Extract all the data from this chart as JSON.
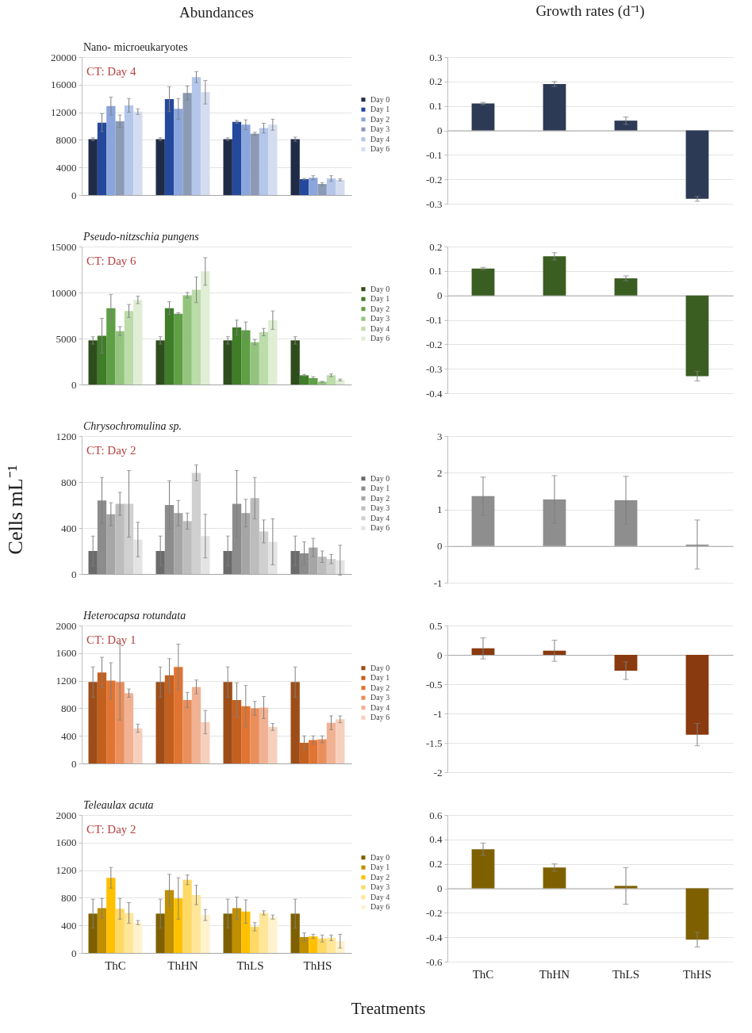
{
  "chart_data": [
    {
      "type": "bar",
      "title": "Abundances",
      "subtitle": "Nano- microeukaryotes",
      "annotations": [
        "CT: Day 4"
      ],
      "categories": [
        null,
        null,
        null,
        null
      ],
      "series": [
        {
          "name": "Day 0",
          "color": "#1f2b47",
          "values": [
            8100,
            8100,
            8100,
            8100
          ],
          "errors": [
            200,
            200,
            200,
            300
          ]
        },
        {
          "name": "Day 1",
          "color": "#24489c",
          "values": [
            10500,
            13900,
            10600,
            2300
          ],
          "errors": [
            1300,
            1800,
            200,
            100
          ]
        },
        {
          "name": "Day 2",
          "color": "#8aa6dc",
          "values": [
            12900,
            12500,
            10200,
            2500
          ],
          "errors": [
            1300,
            1500,
            700,
            300
          ]
        },
        {
          "name": "Day 3",
          "color": "#8b9ab5",
          "values": [
            10700,
            14800,
            8900,
            1600
          ],
          "errors": [
            900,
            1000,
            200,
            200
          ]
        },
        {
          "name": "Day 4",
          "color": "#b4c6ea",
          "values": [
            13000,
            17100,
            9700,
            2400
          ],
          "errors": [
            1000,
            800,
            700,
            400
          ]
        },
        {
          "name": "Day 6",
          "color": "#d4ddf0",
          "values": [
            12100,
            14900,
            10200,
            2200
          ],
          "errors": [
            400,
            1700,
            800,
            150
          ]
        }
      ],
      "ylim": [
        0,
        20000
      ],
      "yticks": [
        0,
        4000,
        8000,
        12000,
        16000,
        20000
      ],
      "grid": "y",
      "legend": "right"
    },
    {
      "type": "bar",
      "title": "Growth rates (d⁻¹)",
      "categories": [
        null,
        null,
        null,
        null
      ],
      "values": [
        0.11,
        0.19,
        0.04,
        -0.28
      ],
      "errors": [
        0.005,
        0.01,
        0.015,
        0.01
      ],
      "color": "#2c3a56",
      "ylim": [
        -0.3,
        0.3
      ],
      "yticks": [
        -0.3,
        -0.2,
        -0.1,
        0,
        0.1,
        0.2,
        0.3
      ],
      "grid": "y"
    },
    {
      "type": "bar",
      "subtitle": "Pseudo-nitzschia pungens",
      "annotations": [
        "CT: Day 6"
      ],
      "categories": [
        null,
        null,
        null,
        null
      ],
      "series": [
        {
          "name": "Day 0",
          "color": "#2e4d1c",
          "values": [
            4800,
            4800,
            4800,
            4800
          ],
          "errors": [
            400,
            400,
            400,
            400
          ]
        },
        {
          "name": "Day 1",
          "color": "#3f7d29",
          "values": [
            5300,
            8300,
            6200,
            1000
          ],
          "errors": [
            1900,
            700,
            800,
            100
          ]
        },
        {
          "name": "Day 2",
          "color": "#5fa046",
          "values": [
            8300,
            7700,
            5900,
            700
          ],
          "errors": [
            1500,
            100,
            900,
            150
          ]
        },
        {
          "name": "Day 3",
          "color": "#93c47d",
          "values": [
            5800,
            9700,
            4600,
            300
          ],
          "errors": [
            500,
            300,
            300,
            50
          ]
        },
        {
          "name": "Day 4",
          "color": "#bcdcaa",
          "values": [
            8000,
            10300,
            5700,
            1000
          ],
          "errors": [
            700,
            1400,
            400,
            150
          ]
        },
        {
          "name": "Day 6",
          "color": "#dfeed4",
          "values": [
            9200,
            12300,
            7000,
            500
          ],
          "errors": [
            400,
            1500,
            1000,
            100
          ]
        }
      ],
      "ylim": [
        0,
        15000
      ],
      "yticks": [
        0,
        5000,
        10000,
        15000
      ],
      "grid": "y",
      "legend": "right"
    },
    {
      "type": "bar",
      "categories": [
        null,
        null,
        null,
        null
      ],
      "values": [
        0.11,
        0.16,
        0.07,
        -0.33
      ],
      "errors": [
        0.005,
        0.015,
        0.01,
        0.02
      ],
      "color": "#3a5e22",
      "ylim": [
        -0.4,
        0.2
      ],
      "yticks": [
        -0.4,
        -0.3,
        -0.2,
        -0.1,
        0,
        0.1,
        0.2
      ],
      "grid": "y"
    },
    {
      "type": "bar",
      "subtitle": "Chrysochromulina sp.",
      "annotations": [
        "CT: Day 2"
      ],
      "ylabel": "Cells mL⁻¹",
      "categories": [
        null,
        null,
        null,
        null
      ],
      "series": [
        {
          "name": "Day 0",
          "color": "#6b6b6b",
          "values": [
            200,
            200,
            200,
            200
          ],
          "errors": [
            130,
            130,
            130,
            130
          ]
        },
        {
          "name": "Day 1",
          "color": "#8c8c8c",
          "values": [
            640,
            600,
            610,
            180
          ],
          "errors": [
            200,
            210,
            290,
            100
          ]
        },
        {
          "name": "Day 2",
          "color": "#a6a6a6",
          "values": [
            520,
            530,
            530,
            230
          ],
          "errors": [
            100,
            110,
            120,
            80
          ]
        },
        {
          "name": "Day 3",
          "color": "#bdbdbd",
          "values": [
            610,
            460,
            660,
            150
          ],
          "errors": [
            100,
            70,
            180,
            50
          ]
        },
        {
          "name": "Day 4",
          "color": "#d0d0d0",
          "values": [
            610,
            880,
            370,
            130
          ],
          "errors": [
            290,
            70,
            100,
            40
          ]
        },
        {
          "name": "Day 6",
          "color": "#e4e4e4",
          "values": [
            300,
            330,
            280,
            120
          ],
          "errors": [
            150,
            190,
            200,
            130
          ]
        }
      ],
      "ylim": [
        0,
        1200
      ],
      "yticks": [
        0,
        400,
        800,
        1200
      ],
      "grid": "y",
      "legend": "right"
    },
    {
      "type": "bar",
      "categories": [
        null,
        null,
        null,
        null
      ],
      "values": [
        1.36,
        1.27,
        1.25,
        0.04
      ],
      "errors": [
        0.52,
        0.65,
        0.65,
        0.67
      ],
      "color": "#8e8e8e",
      "ylim": [
        -1,
        3
      ],
      "yticks": [
        -1,
        0,
        1,
        2,
        3
      ],
      "grid": "y"
    },
    {
      "type": "bar",
      "subtitle": "Heterocapsa rotundata",
      "annotations": [
        "CT: Day 1"
      ],
      "categories": [
        null,
        null,
        null,
        null
      ],
      "series": [
        {
          "name": "Day 0",
          "color": "#9e4d18",
          "values": [
            1180,
            1180,
            1180,
            1180
          ],
          "errors": [
            220,
            220,
            220,
            220
          ]
        },
        {
          "name": "Day 1",
          "color": "#c4601f",
          "values": [
            1320,
            1280,
            920,
            300
          ],
          "errors": [
            220,
            240,
            250,
            100
          ]
        },
        {
          "name": "Day 2",
          "color": "#e07432",
          "values": [
            1200,
            1400,
            830,
            340
          ],
          "errors": [
            260,
            330,
            300,
            60
          ]
        },
        {
          "name": "Day 3",
          "color": "#ea8e5b",
          "values": [
            1180,
            920,
            800,
            350
          ],
          "errors": [
            550,
            110,
            100,
            50
          ]
        },
        {
          "name": "Day 4",
          "color": "#f1b294",
          "values": [
            1020,
            1110,
            810,
            590
          ],
          "errors": [
            60,
            100,
            160,
            100
          ]
        },
        {
          "name": "Day 6",
          "color": "#f7d0bd",
          "values": [
            510,
            600,
            530,
            640
          ],
          "errors": [
            60,
            170,
            50,
            50
          ]
        }
      ],
      "ylim": [
        0,
        2000
      ],
      "yticks": [
        0,
        400,
        800,
        1200,
        1600,
        2000
      ],
      "grid": "y",
      "legend": "right"
    },
    {
      "type": "bar",
      "categories": [
        null,
        null,
        null,
        null
      ],
      "values": [
        0.11,
        0.07,
        -0.27,
        -1.36
      ],
      "errors": [
        0.18,
        0.18,
        0.15,
        0.19
      ],
      "color": "#8a3a0f",
      "ylim": [
        -2,
        0.5
      ],
      "yticks": [
        -2,
        -1.5,
        -1,
        -0.5,
        0,
        0.5
      ],
      "grid": "y"
    },
    {
      "type": "bar",
      "subtitle": "Teleaulax acuta",
      "annotations": [
        "CT: Day 2"
      ],
      "xlabel": "Treatments",
      "categories": [
        "ThC",
        "ThHN",
        "ThLS",
        "ThHS"
      ],
      "series": [
        {
          "name": "Day 0",
          "color": "#7f6000",
          "values": [
            570,
            570,
            570,
            570
          ],
          "errors": [
            210,
            210,
            210,
            210
          ]
        },
        {
          "name": "Day 1",
          "color": "#bf8f00",
          "values": [
            650,
            910,
            650,
            230
          ],
          "errors": [
            140,
            230,
            160,
            60
          ]
        },
        {
          "name": "Day 2",
          "color": "#ffc000",
          "values": [
            1090,
            790,
            600,
            240
          ],
          "errors": [
            150,
            300,
            170,
            30
          ]
        },
        {
          "name": "Day 3",
          "color": "#ffd966",
          "values": [
            640,
            1060,
            380,
            210
          ],
          "errors": [
            150,
            70,
            60,
            50
          ]
        },
        {
          "name": "Day 4",
          "color": "#ffe699",
          "values": [
            580,
            840,
            580,
            220
          ],
          "errors": [
            150,
            140,
            30,
            40
          ]
        },
        {
          "name": "Day 6",
          "color": "#fff2cc",
          "values": [
            440,
            550,
            520,
            170
          ],
          "errors": [
            30,
            80,
            30,
            100
          ]
        }
      ],
      "ylim": [
        0,
        2000
      ],
      "yticks": [
        0,
        400,
        800,
        1200,
        1600,
        2000
      ],
      "grid": "y",
      "legend": "right"
    },
    {
      "type": "bar",
      "categories": [
        "ThC",
        "ThHN",
        "ThLS",
        "ThHS"
      ],
      "values": [
        0.32,
        0.17,
        0.02,
        -0.42
      ],
      "errors": [
        0.05,
        0.03,
        0.15,
        0.06
      ],
      "color": "#7f6000",
      "ylim": [
        -0.6,
        0.6
      ],
      "yticks": [
        -0.6,
        -0.4,
        -0.2,
        0,
        0.2,
        0.4,
        0.6
      ],
      "grid": "y"
    }
  ]
}
